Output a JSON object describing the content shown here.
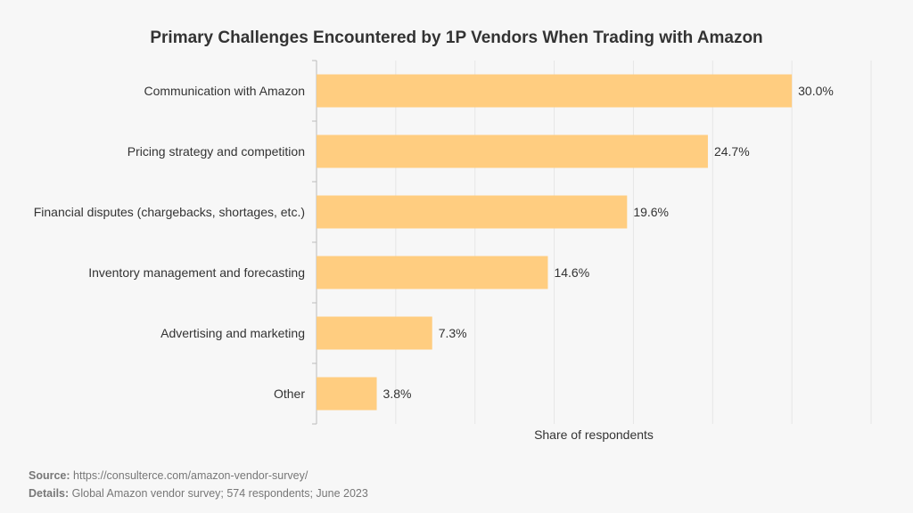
{
  "chart_data": {
    "type": "bar",
    "orientation": "horizontal",
    "title": "Primary Challenges Encountered by 1P Vendors When Trading with Amazon",
    "categories": [
      "Communication with Amazon",
      "Pricing strategy and competition",
      "Financial disputes (chargebacks, shortages, etc.)",
      "Inventory management and forecasting",
      "Advertising and marketing",
      "Other"
    ],
    "values": [
      30.0,
      24.7,
      19.6,
      14.6,
      7.3,
      3.8
    ],
    "data_labels": [
      "30.0%",
      "24.7%",
      "19.6%",
      "14.6%",
      "7.3%",
      "3.8%"
    ],
    "xlabel": "Share of respondents",
    "ylabel": "",
    "xlim": [
      0,
      35
    ],
    "grid": true,
    "bar_color": "#ffcd80"
  },
  "footer": {
    "source_label": "Source:",
    "source_value": "https://consulterce.com/amazon-vendor-survey/",
    "details_label": "Details:",
    "details_value": "Global Amazon vendor survey; 574 respondents; June 2023"
  }
}
